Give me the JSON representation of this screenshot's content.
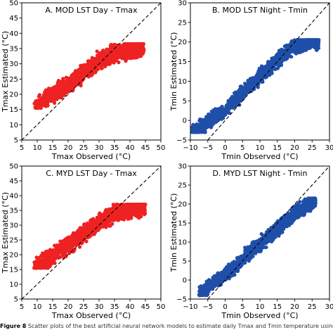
{
  "colors": {
    "red_series": "#ee2222",
    "blue_series": "#1f4fa8",
    "reference_line": "#000000"
  },
  "figure": {
    "caption_label": "Figure 8",
    "caption_text": "Scatter plots of the best artificial neural network models to estimate daily Tmax and Tmin temperature using TERRA and"
  },
  "chart_data": [
    {
      "type": "scatter",
      "title": "A. MOD LST Day - Tmax",
      "xlabel": "Tmax Observed (°C)",
      "ylabel": "Tmax Estimated (°C)",
      "xlim": [
        5,
        50
      ],
      "ylim": [
        5,
        50
      ],
      "xticks": [
        "5",
        "10",
        "15",
        "20",
        "25",
        "30",
        "35",
        "40",
        "45",
        "50"
      ],
      "yticks": [
        "5",
        "10",
        "15",
        "20",
        "25",
        "30",
        "35",
        "40",
        "45",
        "50"
      ],
      "color": "red",
      "reference_line": "1:1 dashed",
      "cloud": {
        "center_line": [
          [
            10,
            16.5
          ],
          [
            15,
            20
          ],
          [
            20,
            23
          ],
          [
            25,
            27
          ],
          [
            30,
            31
          ],
          [
            35,
            33.5
          ],
          [
            40,
            34.5
          ],
          [
            44,
            35
          ]
        ],
        "spread": 4.0,
        "y_range": [
          15.5,
          36.5
        ],
        "x_range": [
          9,
          44.5
        ],
        "n_points": 1400
      }
    },
    {
      "type": "scatter",
      "title": "B. MOD LST Night - Tmin",
      "xlabel": "Tmin Observed (°C)",
      "ylabel": "Tmin Estimated (°C)",
      "xlim": [
        -10,
        30
      ],
      "ylim": [
        -5,
        30
      ],
      "xticks": [
        "−10",
        "−5",
        "0",
        "5",
        "10",
        "15",
        "20",
        "25",
        "30"
      ],
      "yticks": [
        "−5",
        "0",
        "5",
        "10",
        "15",
        "20",
        "25",
        "30"
      ],
      "color": "blue",
      "reference_line": "1:1 dashed",
      "cloud": {
        "center_line": [
          [
            -8,
            -2.5
          ],
          [
            -5,
            -0.5
          ],
          [
            0,
            2.5
          ],
          [
            5,
            7
          ],
          [
            10,
            11
          ],
          [
            15,
            15.5
          ],
          [
            20,
            19
          ],
          [
            25,
            20
          ]
        ],
        "spread": 2.6,
        "y_range": [
          -3,
          20.5
        ],
        "x_range": [
          -9.5,
          27
        ],
        "n_points": 1400
      }
    },
    {
      "type": "scatter",
      "title": "C. MYD LST Day - Tmax",
      "xlabel": "Tmax Observed (°C)",
      "ylabel": "Tmax Estimated (°C)",
      "xlim": [
        5,
        50
      ],
      "ylim": [
        5,
        50
      ],
      "xticks": [
        "5",
        "10",
        "15",
        "20",
        "25",
        "30",
        "35",
        "40",
        "45",
        "50"
      ],
      "yticks": [
        "5",
        "10",
        "15",
        "20",
        "25",
        "30",
        "35",
        "40",
        "45",
        "50"
      ],
      "color": "red",
      "reference_line": "1:1 dashed",
      "cloud": {
        "center_line": [
          [
            10,
            16.5
          ],
          [
            15,
            19.5
          ],
          [
            20,
            23
          ],
          [
            25,
            27
          ],
          [
            30,
            31
          ],
          [
            35,
            34
          ],
          [
            40,
            35.5
          ],
          [
            45,
            36
          ]
        ],
        "spread": 4.0,
        "y_range": [
          15.5,
          37
        ],
        "x_range": [
          9,
          45
        ],
        "n_points": 1400
      }
    },
    {
      "type": "scatter",
      "title": "D. MYD LST Night - Tmin",
      "xlabel": "Tmin Observed (°C)",
      "ylabel": "Tmin Estimated (°C)",
      "xlim": [
        -10,
        30
      ],
      "ylim": [
        -5,
        30
      ],
      "xticks": [
        "−10",
        "−5",
        "0",
        "5",
        "10",
        "15",
        "20",
        "25",
        "30"
      ],
      "yticks": [
        "−5",
        "0",
        "5",
        "10",
        "15",
        "20",
        "25",
        "30"
      ],
      "color": "blue",
      "reference_line": "1:1 dashed",
      "cloud": {
        "center_line": [
          [
            -7,
            -3.5
          ],
          [
            -5,
            -2
          ],
          [
            0,
            1.5
          ],
          [
            5,
            5.5
          ],
          [
            10,
            9.5
          ],
          [
            15,
            13.5
          ],
          [
            20,
            17.5
          ],
          [
            25,
            20.5
          ]
        ],
        "spread": 2.6,
        "y_range": [
          -4,
          21.5
        ],
        "x_range": [
          -7.5,
          26
        ],
        "n_points": 1400
      }
    }
  ]
}
